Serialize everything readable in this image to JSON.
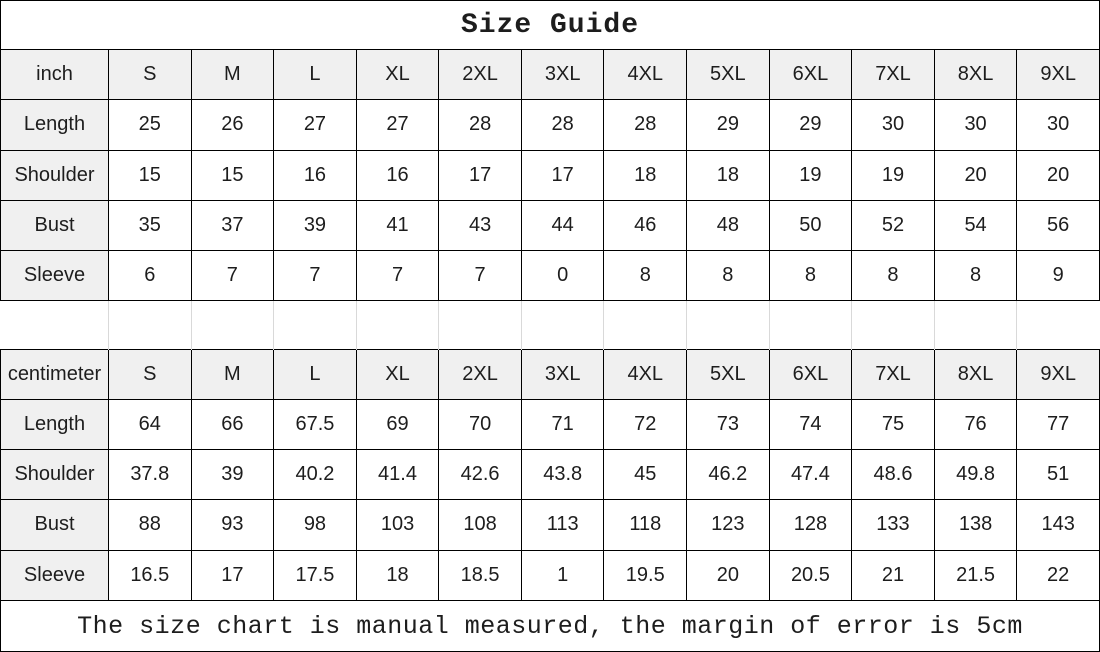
{
  "title": "Size Guide",
  "footer": "The size chart is manual measured, the margin of error is 5cm",
  "colors": {
    "border": "#000000",
    "header_background": "#f0f0f0",
    "cell_background": "#ffffff",
    "gap_gridline": "#d9d9d9",
    "text": "#1d1d1d"
  },
  "chart_data": {
    "type": "table",
    "title": "Size Guide",
    "note": "The size chart is manual measured, the margin of error is 5cm",
    "sections": [
      {
        "unit_label": "inch",
        "columns": [
          "S",
          "M",
          "L",
          "XL",
          "2XL",
          "3XL",
          "4XL",
          "5XL",
          "6XL",
          "7XL",
          "8XL",
          "9XL"
        ],
        "rows": [
          {
            "label": "Length",
            "values": [
              "25",
              "26",
              "27",
              "27",
              "28",
              "28",
              "28",
              "29",
              "29",
              "30",
              "30",
              "30"
            ]
          },
          {
            "label": "Shoulder",
            "values": [
              "15",
              "15",
              "16",
              "16",
              "17",
              "17",
              "18",
              "18",
              "19",
              "19",
              "20",
              "20"
            ]
          },
          {
            "label": "Bust",
            "values": [
              "35",
              "37",
              "39",
              "41",
              "43",
              "44",
              "46",
              "48",
              "50",
              "52",
              "54",
              "56"
            ]
          },
          {
            "label": "Sleeve",
            "values": [
              "6",
              "7",
              "7",
              "7",
              "7",
              "0",
              "8",
              "8",
              "8",
              "8",
              "8",
              "9"
            ]
          }
        ]
      },
      {
        "unit_label": "centimeter",
        "columns": [
          "S",
          "M",
          "L",
          "XL",
          "2XL",
          "3XL",
          "4XL",
          "5XL",
          "6XL",
          "7XL",
          "8XL",
          "9XL"
        ],
        "rows": [
          {
            "label": "Length",
            "values": [
              "64",
              "66",
              "67.5",
              "69",
              "70",
              "71",
              "72",
              "73",
              "74",
              "75",
              "76",
              "77"
            ]
          },
          {
            "label": "Shoulder",
            "values": [
              "37.8",
              "39",
              "40.2",
              "41.4",
              "42.6",
              "43.8",
              "45",
              "46.2",
              "47.4",
              "48.6",
              "49.8",
              "51"
            ]
          },
          {
            "label": "Bust",
            "values": [
              "88",
              "93",
              "98",
              "103",
              "108",
              "113",
              "118",
              "123",
              "128",
              "133",
              "138",
              "143"
            ]
          },
          {
            "label": "Sleeve",
            "values": [
              "16.5",
              "17",
              "17.5",
              "18",
              "18.5",
              "1",
              "19.5",
              "20",
              "20.5",
              "21",
              "21.5",
              "22"
            ]
          }
        ]
      }
    ]
  }
}
